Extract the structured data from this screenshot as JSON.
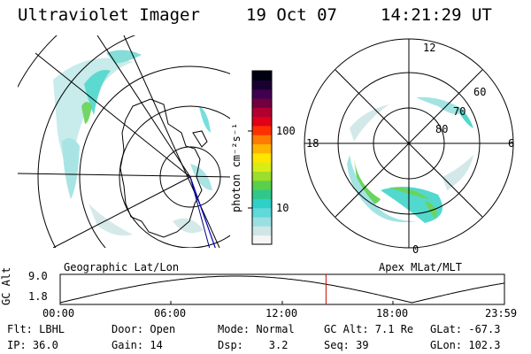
{
  "header": {
    "instrument": "Ultraviolet Imager",
    "date": "19 Oct 07",
    "time": "14:21:29 UT"
  },
  "colorbar": {
    "unit_label": "photon cm⁻²s⁻¹",
    "tick_labels": [
      "100",
      "10"
    ],
    "colors": [
      "#f5f5f5",
      "#cfe6e6",
      "#9be0e0",
      "#5fd9d9",
      "#2fd0c8",
      "#30c88a",
      "#5ad04a",
      "#9cde2a",
      "#d9ec16",
      "#ffe600",
      "#ffb400",
      "#ff7a00",
      "#ff3000",
      "#e0001a",
      "#b00030",
      "#700040",
      "#400050",
      "#1a0030",
      "#000010"
    ]
  },
  "left_map": {
    "label": "Geographic Lat/Lon"
  },
  "right_map": {
    "label": "Apex MLat/MLT",
    "mlt_labels": {
      "top": "12",
      "left": "18",
      "right": "6",
      "bottom": "0"
    },
    "lat_labels": [
      "60",
      "70",
      "80"
    ]
  },
  "alt_plot": {
    "ylabel": "GC Alt",
    "y_ticks": [
      "9.0",
      "1.8"
    ],
    "x_ticks": [
      "00:00",
      "06:00",
      "12:00",
      "18:00",
      "23:59"
    ],
    "current_time_marker_hours": 14.36
  },
  "status": {
    "row1": [
      {
        "name": "filter",
        "text": "Flt: LBHL"
      },
      {
        "name": "door",
        "text": "Door: Open"
      },
      {
        "name": "mode",
        "text": "Mode: Normal"
      },
      {
        "name": "gc-alt",
        "text": "GC Alt: 7.1 Re"
      },
      {
        "name": "glat",
        "text": "GLat: -67.3"
      }
    ],
    "row2": [
      {
        "name": "ip",
        "text": "IP: 36.0"
      },
      {
        "name": "gain",
        "text": "Gain: 14"
      },
      {
        "name": "dsp",
        "text": "Dsp:    3.2"
      },
      {
        "name": "seq",
        "text": "Seq: 39"
      },
      {
        "name": "glon",
        "text": "GLon: 102.3"
      }
    ]
  }
}
